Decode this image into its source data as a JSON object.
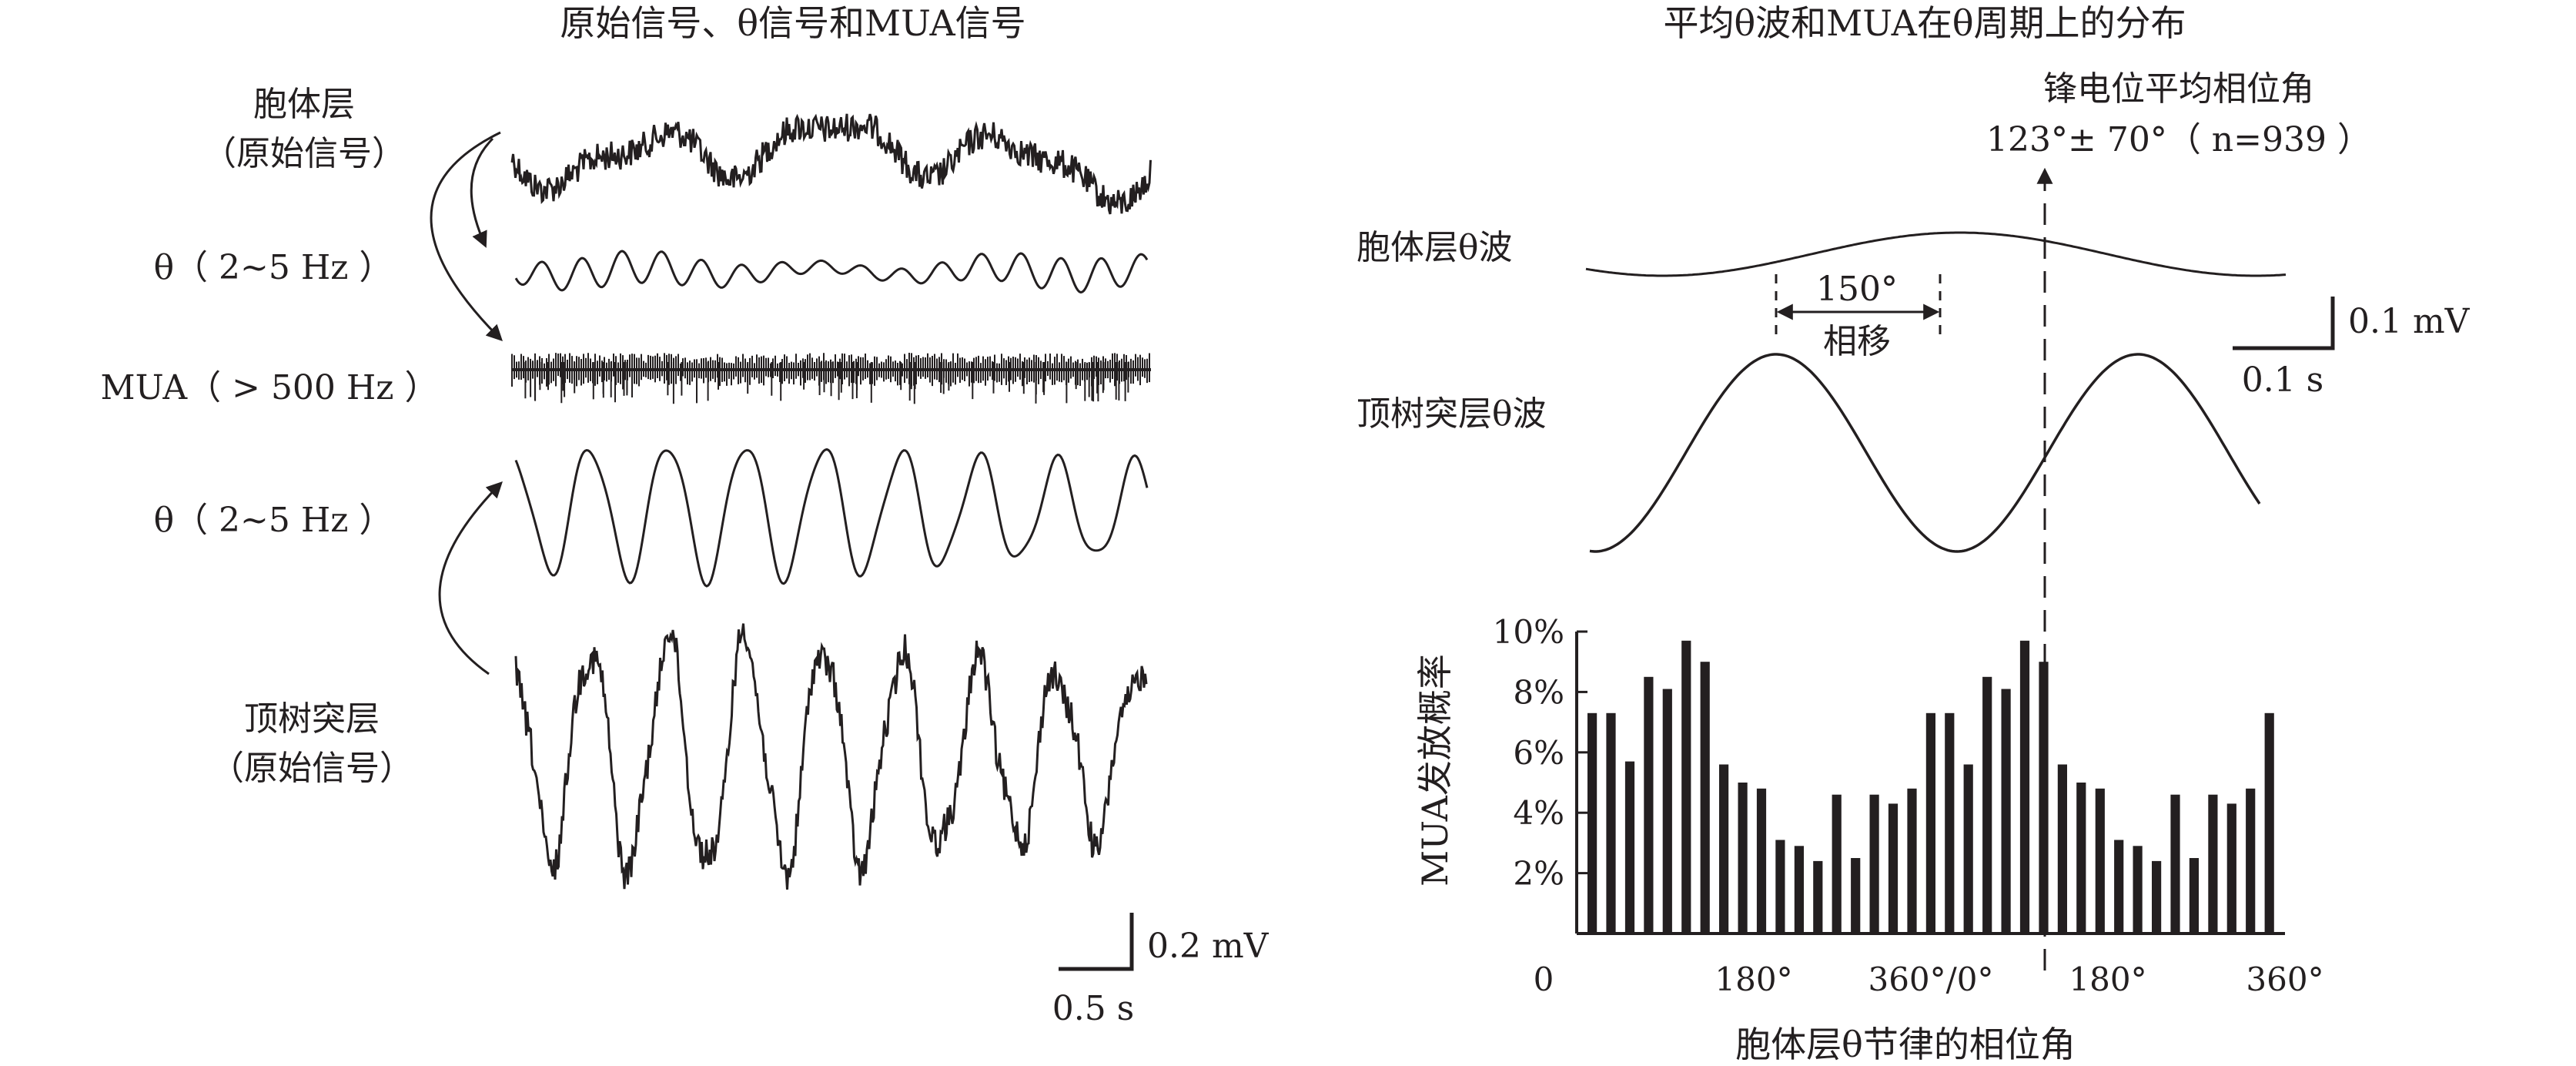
{
  "left_panel": {
    "title": "原始信号、θ信号和MUA信号",
    "labels": {
      "soma_raw_1": "胞体层",
      "soma_raw_2": "（原始信号）",
      "theta_1": "θ（ 2~5 Hz ）",
      "mua": "MUA（ > 500 Hz ）",
      "theta_2": "θ（ 2~5 Hz ）",
      "dend_raw_1": "顶树突层",
      "dend_raw_2": "（原始信号）"
    },
    "scalebar": {
      "amplitude": "0.2 mV",
      "time": "0.5 s"
    }
  },
  "right_panel": {
    "title": "平均θ波和MUA在θ周期上的分布",
    "spike_label_1": "锋电位平均相位角",
    "spike_label_2": "123°± 70°（ n=939 ）",
    "soma_wave_label": "胞体层θ波",
    "dend_wave_label": "顶树突层θ波",
    "phase_shift_value": "150°",
    "phase_shift_text": "相移",
    "scalebar": {
      "amplitude": "0.1 mV",
      "time": "0.1 s"
    }
  },
  "chart_data": {
    "type": "bar",
    "ylabel": "MUA发放概率",
    "xlabel": "胞体层θ节律的相位角",
    "y_tick_labels": [
      "10%",
      "8%",
      "6%",
      "4%",
      "2%"
    ],
    "y_ticks": [
      10,
      8,
      6,
      4,
      2
    ],
    "x_origin_label": "0",
    "x_tick_labels": [
      "180°",
      "360°/0°",
      "180°",
      "360°"
    ],
    "x_ticks": [
      180,
      360,
      540,
      720
    ],
    "xlim": [
      0,
      720
    ],
    "ylim": [
      0,
      10
    ],
    "values": [
      7.3,
      7.3,
      5.7,
      8.5,
      8.1,
      9.7,
      9.0,
      5.6,
      5.0,
      4.8,
      3.1,
      2.9,
      2.4,
      4.6,
      2.5,
      4.6,
      4.3,
      4.8,
      7.3,
      7.3,
      5.6,
      8.5,
      8.1,
      9.7,
      9.0,
      5.6,
      5.0,
      4.8,
      3.1,
      2.9,
      2.4,
      4.6,
      2.5,
      4.6,
      4.3,
      4.8,
      7.3
    ]
  }
}
